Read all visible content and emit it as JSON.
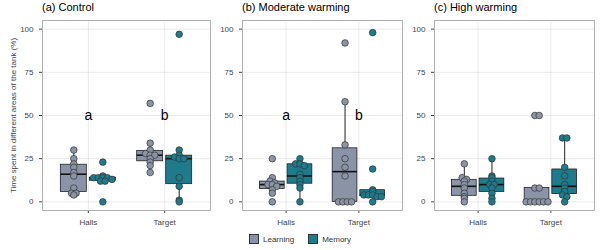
{
  "chart_data": [
    {
      "type": "box",
      "title": "(a) Control",
      "ylabel": "Time spent in different areas of the tank (%)",
      "categories": [
        "Halls",
        "Target"
      ],
      "series": [
        {
          "name": "Learning",
          "color": "#8A94A6",
          "values": [
            [
              30,
              25,
              22,
              20,
              17,
              15,
              8,
              5,
              5,
              4
            ],
            [
              57,
              34,
              30,
              28,
              27,
              27,
              25,
              23,
              21,
              17
            ]
          ]
        },
        {
          "name": "Memory",
          "color": "#1E7B8C",
          "values": [
            [
              23,
              15,
              14,
              14,
              14,
              14,
              13,
              12,
              12,
              0
            ],
            [
              97,
              30,
              27,
              26,
              25,
              25,
              14,
              9,
              1,
              0
            ]
          ]
        }
      ],
      "annotations": [
        {
          "text": "a",
          "x": "Halls",
          "y": 50
        },
        {
          "text": "b",
          "x": "Target",
          "y": 50
        }
      ],
      "ylim": [
        -5,
        105
      ],
      "yticks": [
        0,
        25,
        50,
        75,
        100
      ],
      "grid": true,
      "legend": "bottom"
    },
    {
      "type": "box",
      "title": "(b) Moderate warming",
      "categories": [
        "Halls",
        "Target"
      ],
      "series": [
        {
          "name": "Learning",
          "color": "#8A94A6",
          "values": [
            [
              25,
              14,
              12,
              11,
              10,
              10,
              9,
              7,
              5,
              0
            ],
            [
              92,
              58,
              33,
              25,
              20,
              15,
              0,
              0,
              0,
              0
            ]
          ]
        },
        {
          "name": "Memory",
          "color": "#1E7B8C",
          "values": [
            [
              25,
              22,
              22,
              21,
              16,
              14,
              12,
              10,
              8,
              0
            ],
            [
              98,
              19,
              7,
              6,
              4,
              4,
              4,
              3,
              3,
              0
            ]
          ]
        }
      ],
      "annotations": [
        {
          "text": "a",
          "x": "Halls",
          "y": 50
        },
        {
          "text": "b",
          "x": "Target",
          "y": 50
        }
      ],
      "ylim": [
        -5,
        105
      ],
      "yticks": [
        0,
        25,
        50,
        75,
        100
      ],
      "grid": true
    },
    {
      "type": "box",
      "title": "(c) High warming",
      "categories": [
        "Halls",
        "Target"
      ],
      "series": [
        {
          "name": "Learning",
          "color": "#8A94A6",
          "values": [
            [
              22,
              14,
              13,
              12,
              10,
              8,
              5,
              3,
              2,
              0
            ],
            [
              50,
              50,
              8,
              8,
              0,
              0,
              0,
              0,
              0,
              0
            ]
          ]
        },
        {
          "name": "Memory",
          "color": "#1E7B8C",
          "values": [
            [
              25,
              15,
              14,
              12,
              10,
              10,
              8,
              5,
              2,
              0
            ],
            [
              37,
              37,
              20,
              15,
              10,
              8,
              6,
              4,
              3,
              0
            ]
          ]
        }
      ],
      "ylim": [
        -5,
        105
      ],
      "yticks": [
        0,
        25,
        50,
        75,
        100
      ],
      "grid": true
    }
  ]
}
